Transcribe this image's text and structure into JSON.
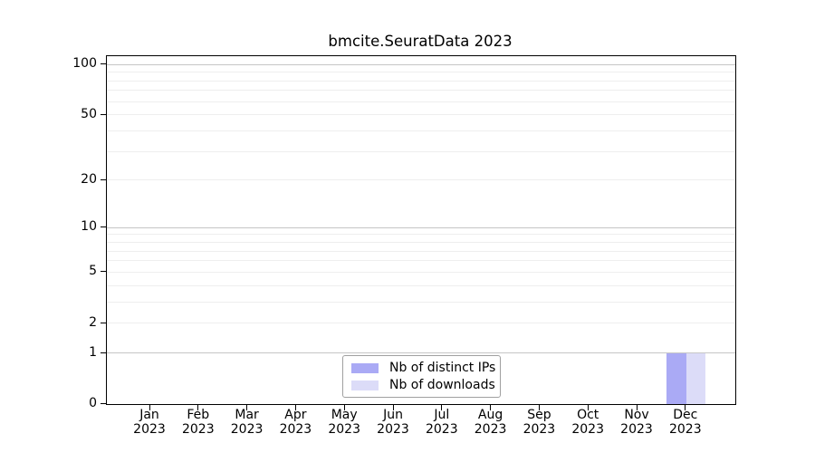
{
  "figure": {
    "title": "bmcite.SeuratData 2023",
    "background": "#ffffff"
  },
  "chart_data": {
    "type": "bar",
    "title": "bmcite.SeuratData 2023",
    "categories": [
      "Jan 2023",
      "Feb 2023",
      "Mar 2023",
      "Apr 2023",
      "May 2023",
      "Jun 2023",
      "Jul 2023",
      "Aug 2023",
      "Sep 2023",
      "Oct 2023",
      "Nov 2023",
      "Dec 2023"
    ],
    "month_labels": [
      "Jan",
      "Feb",
      "Mar",
      "Apr",
      "May",
      "Jun",
      "Jul",
      "Aug",
      "Sep",
      "Oct",
      "Nov",
      "Dec"
    ],
    "year_label": "2023",
    "series": [
      {
        "name": "Nb of distinct IPs",
        "color": "#aaaaf5",
        "values": [
          0,
          0,
          0,
          0,
          0,
          0,
          0,
          0,
          0,
          0,
          0,
          1
        ]
      },
      {
        "name": "Nb of downloads",
        "color": "#dcdcf8",
        "values": [
          0,
          0,
          0,
          0,
          0,
          0,
          0,
          0,
          0,
          0,
          0,
          1
        ]
      }
    ],
    "xlabel": "",
    "ylabel": "",
    "y_axis": {
      "scale": "log1p",
      "tick_values": [
        0,
        1,
        2,
        5,
        10,
        20,
        50,
        100
      ],
      "tick_labels": [
        "0",
        "1",
        "2",
        "5",
        "10",
        "20",
        "50",
        "100"
      ],
      "ylim": [
        0,
        112
      ],
      "major_gridlines": [
        1,
        10,
        100
      ],
      "minor_gridlines": [
        2,
        3,
        4,
        5,
        6,
        7,
        8,
        9,
        20,
        30,
        40,
        50,
        60,
        70,
        80,
        90
      ],
      "grid": "on"
    },
    "legend": {
      "position": "bottom-center",
      "entries": [
        "Nb of distinct IPs",
        "Nb of downloads"
      ]
    }
  },
  "colors": {
    "bar_distinct_ips": "#aaaaf5",
    "bar_downloads": "#dcdcf8",
    "grid_major": "#c6c6c6",
    "grid_minor": "#eeeeee",
    "frame": "#000000",
    "text": "#000000",
    "legend_border": "#a0a0a0",
    "background": "#ffffff"
  }
}
